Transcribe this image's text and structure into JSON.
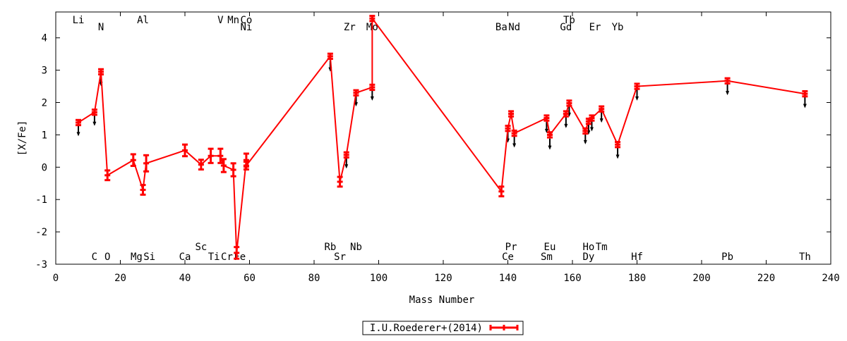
{
  "chart_data": {
    "type": "line",
    "xlabel": "Mass Number",
    "ylabel": "[X/Fe]",
    "xlim": [
      0,
      240
    ],
    "ylim": [
      -3,
      4.8
    ],
    "x_ticks": [
      0,
      20,
      40,
      60,
      80,
      100,
      120,
      140,
      160,
      180,
      200,
      220,
      240
    ],
    "y_ticks": [
      -3,
      -2,
      -1,
      0,
      1,
      2,
      3,
      4
    ],
    "grid": false,
    "legend_position": "bottom-center",
    "series": [
      {
        "name": "I.U.Roederer+(2014)",
        "color": "#ff0000",
        "points": [
          {
            "x": 7,
            "y": 1.38,
            "err": 0.08
          },
          {
            "x": 12,
            "y": 1.7,
            "err": 0.08
          },
          {
            "x": 14,
            "y": 2.95,
            "err": 0.08
          },
          {
            "x": 16,
            "y": -0.25,
            "err": 0.15
          },
          {
            "x": 24,
            "y": 0.22,
            "err": 0.18
          },
          {
            "x": 27,
            "y": -0.7,
            "err": 0.15
          },
          {
            "x": 28,
            "y": 0.12,
            "err": 0.25
          },
          {
            "x": 40,
            "y": 0.52,
            "err": 0.18
          },
          {
            "x": 45,
            "y": 0.08,
            "err": 0.15
          },
          {
            "x": 48,
            "y": 0.35,
            "err": 0.22
          },
          {
            "x": 51,
            "y": 0.35,
            "err": 0.22
          },
          {
            "x": 52,
            "y": 0.05,
            "err": 0.2
          },
          {
            "x": 55,
            "y": -0.08,
            "err": 0.2
          },
          {
            "x": 56,
            "y": -2.65,
            "err": 0.18
          },
          {
            "x": 59,
            "y": 0.22,
            "err": 0.2
          },
          {
            "x": 59,
            "y": 0.05,
            "err": 0.12
          },
          {
            "x": 85,
            "y": 3.43,
            "err": 0.08
          },
          {
            "x": 88,
            "y": -0.45,
            "err": 0.15
          },
          {
            "x": 90,
            "y": 0.38,
            "err": 0.08
          },
          {
            "x": 93,
            "y": 2.3,
            "err": 0.08
          },
          {
            "x": 98,
            "y": 2.47,
            "err": 0.08
          },
          {
            "x": 98,
            "y": 4.6,
            "err": 0.08
          },
          {
            "x": 138,
            "y": -0.75,
            "err": 0.15
          },
          {
            "x": 140,
            "y": 1.2,
            "err": 0.08
          },
          {
            "x": 141,
            "y": 1.65,
            "err": 0.08
          },
          {
            "x": 142,
            "y": 1.05,
            "err": 0.08
          },
          {
            "x": 152,
            "y": 1.52,
            "err": 0.08
          },
          {
            "x": 153,
            "y": 1.0,
            "err": 0.08
          },
          {
            "x": 158,
            "y": 1.65,
            "err": 0.08
          },
          {
            "x": 159,
            "y": 1.98,
            "err": 0.08
          },
          {
            "x": 164,
            "y": 1.12,
            "err": 0.08
          },
          {
            "x": 165,
            "y": 1.42,
            "err": 0.08
          },
          {
            "x": 166,
            "y": 1.52,
            "err": 0.08
          },
          {
            "x": 169,
            "y": 1.8,
            "err": 0.08
          },
          {
            "x": 174,
            "y": 0.7,
            "err": 0.08
          },
          {
            "x": 180,
            "y": 2.5,
            "err": 0.08
          },
          {
            "x": 208,
            "y": 2.67,
            "err": 0.08
          },
          {
            "x": 232,
            "y": 2.27,
            "err": 0.08
          }
        ]
      }
    ],
    "limits": [
      {
        "x": 7,
        "y": 1.0
      },
      {
        "x": 12,
        "y": 1.32
      },
      {
        "x": 14,
        "y": 2.55
      },
      {
        "x": 85,
        "y": 3.0
      },
      {
        "x": 90,
        "y": 0.0
      },
      {
        "x": 93,
        "y": 1.92
      },
      {
        "x": 98,
        "y": 2.1
      },
      {
        "x": 140,
        "y": 0.8
      },
      {
        "x": 142,
        "y": 0.65
      },
      {
        "x": 152,
        "y": 1.1
      },
      {
        "x": 153,
        "y": 0.58
      },
      {
        "x": 158,
        "y": 1.25
      },
      {
        "x": 159,
        "y": 1.6
      },
      {
        "x": 164,
        "y": 0.75
      },
      {
        "x": 165,
        "y": 1.05
      },
      {
        "x": 166,
        "y": 1.15
      },
      {
        "x": 169,
        "y": 1.42
      },
      {
        "x": 174,
        "y": 0.3
      },
      {
        "x": 180,
        "y": 2.1
      },
      {
        "x": 208,
        "y": 2.27
      },
      {
        "x": 232,
        "y": 1.87
      }
    ],
    "element_labels": [
      {
        "text": "Li",
        "x": 7,
        "row": "top1"
      },
      {
        "text": "N",
        "x": 14,
        "row": "top2"
      },
      {
        "text": "Al",
        "x": 27,
        "row": "top1"
      },
      {
        "text": "V",
        "x": 51,
        "row": "top1"
      },
      {
        "text": "Mn",
        "x": 55,
        "row": "top1"
      },
      {
        "text": "Co",
        "x": 59,
        "row": "top1"
      },
      {
        "text": "Ni",
        "x": 59,
        "row": "top2"
      },
      {
        "text": "Zr",
        "x": 91,
        "row": "top2"
      },
      {
        "text": "Mo",
        "x": 98,
        "row": "top2"
      },
      {
        "text": "Ba",
        "x": 138,
        "row": "top2"
      },
      {
        "text": "Nd",
        "x": 142,
        "row": "top2"
      },
      {
        "text": "Tb",
        "x": 159,
        "row": "top1"
      },
      {
        "text": "Gd",
        "x": 158,
        "row": "top2"
      },
      {
        "text": "Er",
        "x": 167,
        "row": "top2"
      },
      {
        "text": "Yb",
        "x": 174,
        "row": "top2"
      },
      {
        "text": "Sc",
        "x": 45,
        "row": "bot1"
      },
      {
        "text": "Rb",
        "x": 85,
        "row": "bot1"
      },
      {
        "text": "Nb",
        "x": 93,
        "row": "bot1"
      },
      {
        "text": "Pr",
        "x": 141,
        "row": "bot1"
      },
      {
        "text": "Eu",
        "x": 153,
        "row": "bot1"
      },
      {
        "text": "Ho",
        "x": 165,
        "row": "bot1"
      },
      {
        "text": "Tm",
        "x": 169,
        "row": "bot1"
      },
      {
        "text": "C",
        "x": 12,
        "row": "bot2"
      },
      {
        "text": "O",
        "x": 16,
        "row": "bot2"
      },
      {
        "text": "Mg",
        "x": 25,
        "row": "bot2"
      },
      {
        "text": "Si",
        "x": 29,
        "row": "bot2"
      },
      {
        "text": "Ca",
        "x": 40,
        "row": "bot2"
      },
      {
        "text": "Ti",
        "x": 49,
        "row": "bot2"
      },
      {
        "text": "Cr",
        "x": 53,
        "row": "bot2"
      },
      {
        "text": "Fe",
        "x": 57,
        "row": "bot2"
      },
      {
        "text": "Sr",
        "x": 88,
        "row": "bot2"
      },
      {
        "text": "Ce",
        "x": 140,
        "row": "bot2"
      },
      {
        "text": "Sm",
        "x": 152,
        "row": "bot2"
      },
      {
        "text": "Dy",
        "x": 165,
        "row": "bot2"
      },
      {
        "text": "Hf",
        "x": 180,
        "row": "bot2"
      },
      {
        "text": "Pb",
        "x": 208,
        "row": "bot2"
      },
      {
        "text": "Th",
        "x": 232,
        "row": "bot2"
      }
    ]
  }
}
